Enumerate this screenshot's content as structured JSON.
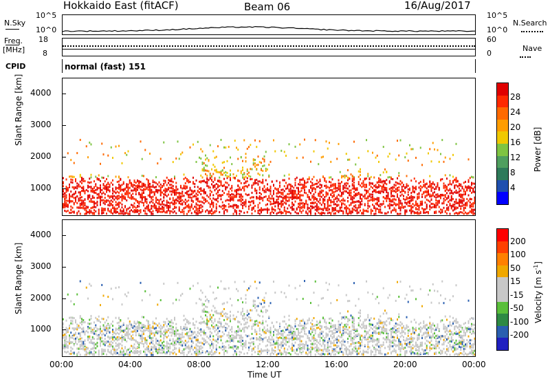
{
  "header": {
    "radar": "Hokkaido East (fitACF)",
    "beam": "Beam 06",
    "date": "16/Aug/2017"
  },
  "strips": {
    "nsky_label": "N.Sky",
    "nsearch_label": "N.Search",
    "nsky_ticks": [
      "10^5",
      "10^0"
    ],
    "freq_label": "Freq.",
    "freq_unit": "[MHz]",
    "freq_ticks": [
      "18",
      "8"
    ],
    "nave_label": "Nave",
    "nave_ticks": [
      "60",
      "0"
    ],
    "cpid_label": "CPID",
    "cpid_value": "normal (fast) 151"
  },
  "colors": {
    "power_scale": [
      "#0000ff",
      "#1f4faf",
      "#2e7a5a",
      "#4f9f5f",
      "#7fc442",
      "#f0c800",
      "#ff9d00",
      "#ff6a00",
      "#ff2a00",
      "#e00000"
    ],
    "velocity_scale": [
      "#2020c0",
      "#2a5fb0",
      "#2e8a44",
      "#5abf3a",
      "#c8c8c8",
      "#c8c8c8",
      "#f0a800",
      "#ff8000",
      "#ff4000",
      "#ff0000"
    ]
  },
  "chart_data": [
    {
      "type": "heatmap",
      "title": "Power",
      "ylabel": "Slant Range [km]",
      "xlabel": "Time UT",
      "x_ticks": [
        "00:00",
        "04:00",
        "08:00",
        "12:00",
        "16:00",
        "20:00",
        "00:00"
      ],
      "xlim_hours": [
        0,
        24
      ],
      "y_ticks": [
        1000,
        2000,
        3000,
        4000
      ],
      "ylim": [
        180,
        4500
      ],
      "colorbar_label": "Power [dB]",
      "colorbar_ticks": [
        4,
        8,
        12,
        16,
        20,
        24,
        28
      ],
      "colorbar_range": [
        0,
        30
      ]
    },
    {
      "type": "heatmap",
      "title": "Velocity",
      "ylabel": "Slant Range [km]",
      "xlabel": "Time UT",
      "x_ticks": [
        "00:00",
        "04:00",
        "08:00",
        "12:00",
        "16:00",
        "20:00",
        "00:00"
      ],
      "xlim_hours": [
        0,
        24
      ],
      "y_ticks": [
        1000,
        2000,
        3000,
        4000
      ],
      "ylim": [
        180,
        4500
      ],
      "colorbar_label": "Velocity [m s",
      "colorbar_unit_exp": "-1",
      "colorbar_ticks": [
        200,
        100,
        50,
        15,
        -15,
        -50,
        -100,
        -200
      ]
    }
  ]
}
